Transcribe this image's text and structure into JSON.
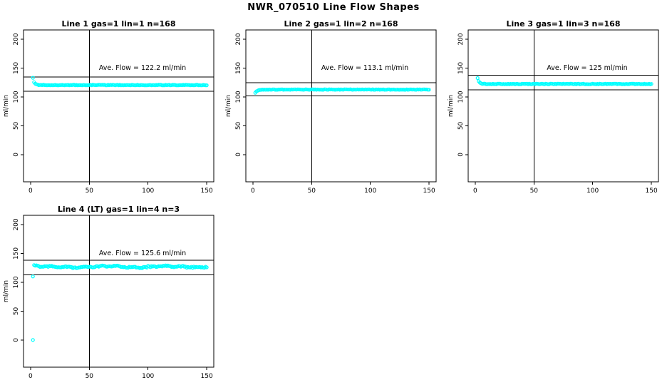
{
  "figure": {
    "title": "NWR_070510  Line Flow Shapes",
    "background": "#ffffff",
    "axis_color": "#000000",
    "point_color": "#00ffff"
  },
  "chart_data": [
    {
      "type": "scatter",
      "title": "Line 1 gas=1 lin=1 n=168",
      "annotation": "Ave. Flow =  122.2  ml/min",
      "ave_flow_ml_min": 122.2,
      "n": 168,
      "ylabel": "ml/min",
      "xticks": [
        0,
        50,
        100,
        150
      ],
      "yticks": [
        0,
        50,
        100,
        150,
        200
      ],
      "xlim": [
        -6,
        156
      ],
      "ylim": [
        -47,
        216
      ],
      "vline_x": 50,
      "band_lines_ml_min": [
        134.4,
        110.0
      ],
      "point_color": "#00ffff",
      "series": {
        "x_start": 2,
        "x_end": 150,
        "x_step": 1,
        "start_value": 133,
        "settle_value": 120.5,
        "decay": 1.2,
        "noise": 0.5,
        "wiggle": 0
      },
      "outliers": []
    },
    {
      "type": "scatter",
      "title": "Line 2 gas=1 lin=2 n=168",
      "annotation": "Ave. Flow =  113.1  ml/min",
      "ave_flow_ml_min": 113.1,
      "n": 168,
      "ylabel": "ml/min",
      "xticks": [
        0,
        50,
        100,
        150
      ],
      "yticks": [
        0,
        50,
        100,
        150,
        200
      ],
      "xlim": [
        -6,
        156
      ],
      "ylim": [
        -47,
        216
      ],
      "vline_x": 50,
      "band_lines_ml_min": [
        124.4,
        101.8
      ],
      "point_color": "#00ffff",
      "series": {
        "x_start": 2,
        "x_end": 150,
        "x_step": 1,
        "start_value": 107.5,
        "settle_value": 112.8,
        "decay": 2.0,
        "noise": 0.45,
        "wiggle": 0
      },
      "outliers": []
    },
    {
      "type": "scatter",
      "title": "Line 3 gas=1 lin=3 n=168",
      "annotation": "Ave. Flow =  125  ml/min",
      "ave_flow_ml_min": 125,
      "n": 168,
      "ylabel": "ml/min",
      "xticks": [
        0,
        50,
        100,
        150
      ],
      "yticks": [
        0,
        50,
        100,
        150,
        200
      ],
      "xlim": [
        -6,
        156
      ],
      "ylim": [
        -47,
        216
      ],
      "vline_x": 50,
      "band_lines_ml_min": [
        137.5,
        112.5
      ],
      "point_color": "#00ffff",
      "series": {
        "x_start": 2,
        "x_end": 150,
        "x_step": 1,
        "start_value": 133,
        "settle_value": 122.5,
        "decay": 1.3,
        "noise": 0.6,
        "wiggle": 0
      },
      "outliers": []
    },
    {
      "type": "scatter",
      "title": "Line 4 (LT) gas=1 lin=4 n=3",
      "annotation": "Ave. Flow =  125.6  ml/min",
      "ave_flow_ml_min": 125.6,
      "n": 3,
      "ylabel": "ml/min",
      "xticks": [
        0,
        50,
        100,
        150
      ],
      "yticks": [
        0,
        50,
        100,
        150,
        200
      ],
      "xlim": [
        -6,
        156
      ],
      "ylim": [
        -47,
        216
      ],
      "vline_x": 50,
      "band_lines_ml_min": [
        138.2,
        113.0
      ],
      "point_color": "#00ffff",
      "series": {
        "x_start": 3,
        "x_end": 150,
        "x_step": 1,
        "start_value": 129,
        "settle_value": 127,
        "decay": 3.0,
        "noise": 0.8,
        "wiggle": 1.5
      },
      "outliers": [
        [
          2,
          0
        ],
        [
          2,
          110
        ]
      ]
    }
  ]
}
